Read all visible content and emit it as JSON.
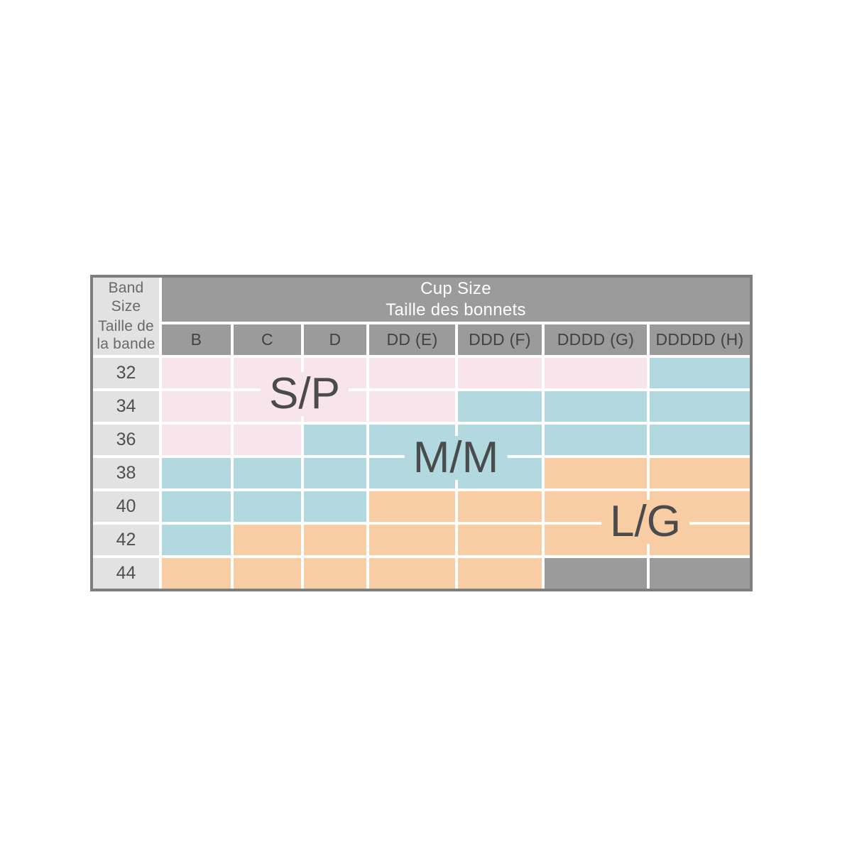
{
  "corner": {
    "en": "Band\nSize",
    "fr": "Taille de\nla bande"
  },
  "cup_header": {
    "en": "Cup Size",
    "fr": "Taille des bonnets"
  },
  "chart_data": {
    "type": "table",
    "title": "Cup Size / Taille des bonnets",
    "row_axis_label": "Band Size / Taille de la bande",
    "columns": [
      "B",
      "C",
      "D",
      "DD (E)",
      "DDD (F)",
      "DDDD (G)",
      "DDDDD (H)"
    ],
    "rows": [
      "32",
      "34",
      "36",
      "38",
      "40",
      "42",
      "44"
    ],
    "matrix": [
      [
        "S/P",
        "S/P",
        "S/P",
        "S/P",
        "S/P",
        "S/P",
        "M/M"
      ],
      [
        "S/P",
        "S/P",
        "S/P",
        "S/P",
        "M/M",
        "M/M",
        "M/M"
      ],
      [
        "S/P",
        "S/P",
        "M/M",
        "M/M",
        "M/M",
        "M/M",
        "M/M"
      ],
      [
        "M/M",
        "M/M",
        "M/M",
        "M/M",
        "M/M",
        "L/G",
        "L/G"
      ],
      [
        "M/M",
        "M/M",
        "M/M",
        "L/G",
        "L/G",
        "L/G",
        "L/G"
      ],
      [
        "M/M",
        "L/G",
        "L/G",
        "L/G",
        "L/G",
        "L/G",
        "L/G"
      ],
      [
        "L/G",
        "L/G",
        "L/G",
        "L/G",
        "L/G",
        "N/A",
        "N/A"
      ]
    ],
    "cell_colors": {
      "S/P": "#f8e4eb",
      "M/M": "#b2d9e0",
      "L/G": "#f9cda4",
      "N/A": "#9b9b9b"
    },
    "overlay_labels": [
      {
        "text": "S/P"
      },
      {
        "text": "M/M"
      },
      {
        "text": "L/G"
      }
    ]
  },
  "colors": {
    "header_gray": "#9b9b9b",
    "band_column_gray": "#e2e2e2",
    "border_gray": "#7d7e80",
    "gridline_white": "#ffffff",
    "header_text_white": "#ffffff",
    "corner_text": "#68696b",
    "column_letter_text": "#414245",
    "band_number_text": "#4f5052",
    "overlay_label_text": "#4a4b4d"
  }
}
